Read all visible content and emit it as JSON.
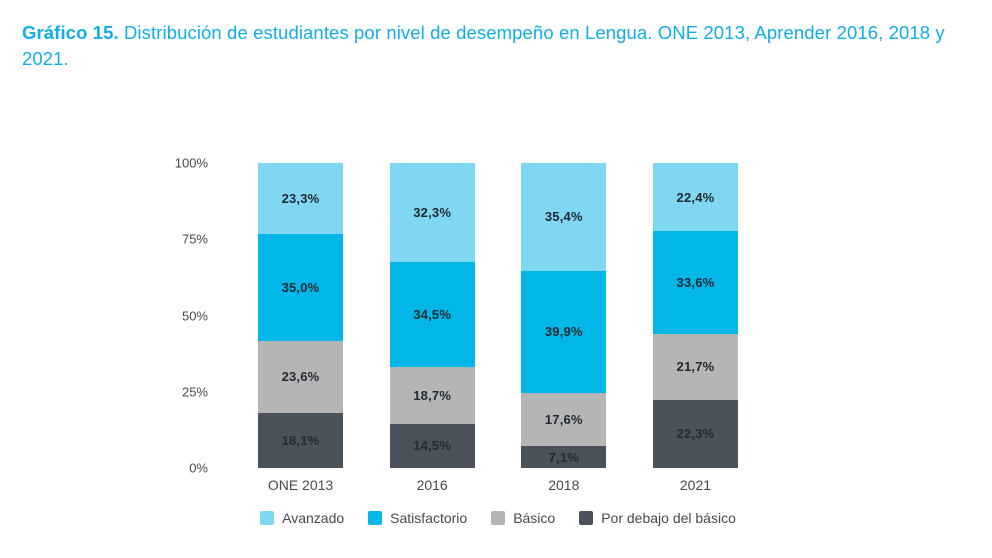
{
  "page": {
    "title_bold": "Gráfico 15.",
    "title_rest": " Distribución de estudiantes por nivel de desempeño en Lengua. ONE 2013, Aprender 2016, 2018 y 2021."
  },
  "colors": {
    "title": "#0FAEE6",
    "data_label": "#222A33",
    "axis_text": "#45494F",
    "background": "#FFFFFF"
  },
  "chart_data": {
    "type": "bar",
    "stacked": true,
    "grid": false,
    "legend_position": "bottom",
    "categories": [
      "ONE 2013",
      "2016",
      "2018",
      "2021"
    ],
    "series": [
      {
        "key": "avanzado",
        "name": "Avanzado",
        "color": "#7FD7F2",
        "values": [
          23.3,
          32.3,
          35.4,
          22.4
        ],
        "labels": [
          "23,3%",
          "32,3%",
          "35,4%",
          "22,4%"
        ]
      },
      {
        "key": "satisfactorio",
        "name": "Satisfactorio",
        "color": "#00B7E8",
        "values": [
          35.0,
          34.5,
          39.9,
          33.6
        ],
        "labels": [
          "35,0%",
          "34,5%",
          "39,9%",
          "33,6%"
        ]
      },
      {
        "key": "basico",
        "name": "Básico",
        "color": "#B5B5B5",
        "values": [
          23.6,
          18.7,
          17.6,
          21.7
        ],
        "labels": [
          "23,6%",
          "18,7%",
          "17,6%",
          "21,7%"
        ]
      },
      {
        "key": "por-debajo-del-basico",
        "name": "Por debajo del básico",
        "color": "#4C525B",
        "values": [
          18.1,
          14.5,
          7.1,
          22.3
        ],
        "labels": [
          "18,1%",
          "14,5%",
          "7,1%",
          "22,3%"
        ]
      }
    ],
    "ylim": [
      0,
      100
    ],
    "y_tick_values": [
      100,
      75,
      50,
      25,
      0
    ],
    "y_ticks": [
      "100%",
      "75%",
      "50%",
      "25%",
      "0%"
    ]
  }
}
